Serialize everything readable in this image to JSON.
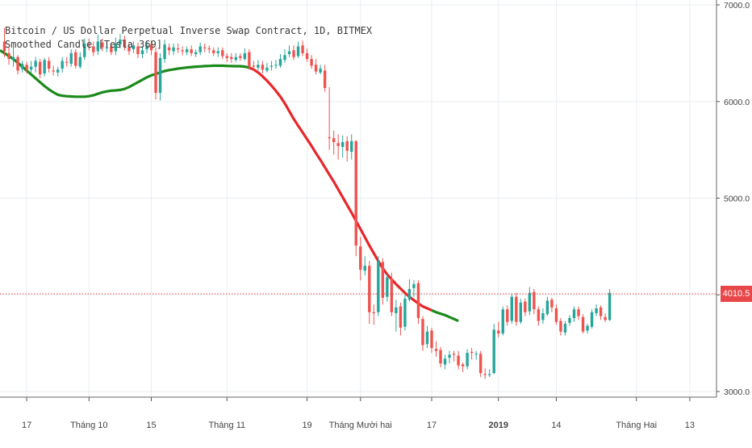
{
  "title": "Bitcoin / US Dollar Perpetual Inverse Swap Contract, 1D, BITMEX",
  "study_label": "Smoothed Candle [Tesla 369]",
  "last_price_label": "4010.5",
  "colors": {
    "up": "#26a69a",
    "down": "#ef5350",
    "ma_bull": "#1b8a1b",
    "ma_bear": "#e8262a",
    "price_line": "#e8474a",
    "grid": "#e9eef2",
    "axis_text": "#444444"
  },
  "chart_data": {
    "type": "candlestick",
    "title": "Bitcoin / US Dollar Perpetual Inverse Swap Contract, 1D, BITMEX",
    "y_axis": {
      "ticks": [
        "3000.0",
        "4000.0",
        "5000.0",
        "6000.0",
        "7000.0"
      ],
      "tick_values": [
        3000,
        4000,
        5000,
        6000,
        7000
      ],
      "range": [
        2980,
        7040
      ]
    },
    "x_axis": {
      "start": "2018-09-11",
      "end": "2019-02-19",
      "ticks": [
        {
          "label": "17",
          "date": "2018-09-17",
          "bold": false
        },
        {
          "label": "Tháng 10",
          "date": "2018-10-01",
          "bold": false
        },
        {
          "label": "15",
          "date": "2018-10-15",
          "bold": false
        },
        {
          "label": "Tháng 11",
          "date": "2018-11-01",
          "bold": false
        },
        {
          "label": "19",
          "date": "2018-11-19",
          "bold": false
        },
        {
          "label": "Tháng Mười hai",
          "date": "2018-12-01",
          "bold": false
        },
        {
          "label": "17",
          "date": "2018-12-17",
          "bold": false
        },
        {
          "label": "2019",
          "date": "2019-01-01",
          "bold": true
        },
        {
          "label": "14",
          "date": "2019-01-14",
          "bold": false
        },
        {
          "label": "Tháng Hai",
          "date": "2019-02-01",
          "bold": false
        },
        {
          "label": "13",
          "date": "2019-02-13",
          "bold": false
        }
      ]
    },
    "price_line": 4010.5,
    "candle_series": {
      "name": "",
      "first_date": "2018-09-12",
      "close": [
        6520,
        6440,
        6460,
        6320,
        6390,
        6330,
        6360,
        6420,
        6280,
        6430,
        6340,
        6310,
        6330,
        6420,
        6400,
        6500,
        6370,
        6460,
        6600,
        6580,
        6510,
        6620,
        6560,
        6560,
        6510,
        6600,
        6640,
        6560,
        6520,
        6580,
        6490,
        6530,
        6580,
        6530,
        6090,
        6450,
        6590,
        6530,
        6560,
        6540,
        6520,
        6540,
        6500,
        6510,
        6570,
        6550,
        6540,
        6500,
        6520,
        6470,
        6450,
        6440,
        6460,
        6450,
        6500,
        6360,
        6360,
        6380,
        6330,
        6350,
        6370,
        6380,
        6440,
        6480,
        6520,
        6460,
        6570,
        6500,
        6440,
        6370,
        6310,
        6340,
        6140,
        5620,
        5580,
        5540,
        5580,
        5490,
        5590,
        4510,
        4260,
        4300,
        3820,
        3810,
        4350,
        3970,
        4180,
        3820,
        3870,
        3660,
        3960,
        4060,
        4110,
        3760,
        3480,
        3620,
        3450,
        3420,
        3290,
        3340,
        3380,
        3380,
        3270,
        3260,
        3400,
        3400,
        3390,
        3190,
        3170,
        3180,
        3640,
        3600,
        3850,
        3720,
        3980,
        3720,
        3920,
        3820,
        4020,
        3850,
        3730,
        3810,
        3940,
        3870,
        3720,
        3620,
        3700,
        3760,
        3850,
        3780,
        3620,
        3680,
        3820,
        3860,
        3780,
        3740,
        4020
      ],
      "open": [
        6620,
        6500,
        6430,
        6460,
        6340,
        6380,
        6330,
        6360,
        6410,
        6290,
        6420,
        6320,
        6300,
        6340,
        6410,
        6390,
        6510,
        6360,
        6460,
        6590,
        6570,
        6520,
        6610,
        6550,
        6570,
        6520,
        6590,
        6640,
        6560,
        6540,
        6570,
        6490,
        6540,
        6590,
        6510,
        6090,
        6440,
        6560,
        6520,
        6550,
        6530,
        6510,
        6540,
        6490,
        6510,
        6560,
        6550,
        6530,
        6500,
        6530,
        6470,
        6460,
        6430,
        6470,
        6440,
        6510,
        6370,
        6350,
        6380,
        6320,
        6360,
        6380,
        6370,
        6430,
        6490,
        6530,
        6470,
        6580,
        6500,
        6440,
        6380,
        6300,
        6320,
        5630,
        5620,
        5570,
        5530,
        5590,
        5480,
        5590,
        4500,
        4250,
        4300,
        3820,
        3820,
        4340,
        3980,
        4170,
        3810,
        3880,
        3670,
        3950,
        4070,
        4120,
        3750,
        3490,
        3630,
        3440,
        3430,
        3280,
        3350,
        3390,
        3370,
        3280,
        3260,
        3410,
        3390,
        3390,
        3180,
        3170,
        3190,
        3630,
        3600,
        3850,
        3730,
        3980,
        3720,
        3930,
        3830,
        4030,
        3850,
        3740,
        3800,
        3950,
        3860,
        3730,
        3610,
        3710,
        3760,
        3850,
        3770,
        3630,
        3670,
        3810,
        3870,
        3770,
        3740
      ],
      "high": [
        6760,
        6560,
        6560,
        6480,
        6420,
        6410,
        6420,
        6460,
        6440,
        6450,
        6460,
        6370,
        6360,
        6460,
        6460,
        6540,
        6540,
        6510,
        6650,
        6650,
        6620,
        6690,
        6650,
        6610,
        6600,
        6660,
        6700,
        6680,
        6600,
        6620,
        6610,
        6570,
        6620,
        6630,
        6560,
        6500,
        6640,
        6600,
        6600,
        6600,
        6570,
        6570,
        6580,
        6540,
        6610,
        6600,
        6580,
        6560,
        6560,
        6560,
        6500,
        6500,
        6500,
        6500,
        6550,
        6540,
        6420,
        6430,
        6420,
        6400,
        6420,
        6430,
        6490,
        6540,
        6580,
        6580,
        6620,
        6630,
        6550,
        6480,
        6440,
        6380,
        6380,
        6150,
        5700,
        5660,
        5650,
        5640,
        5660,
        5600,
        4600,
        4400,
        4350,
        3900,
        4400,
        4380,
        4220,
        4230,
        3950,
        3920,
        4000,
        4160,
        4150,
        4150,
        3780,
        3680,
        3660,
        3520,
        3460,
        3380,
        3420,
        3420,
        3420,
        3300,
        3440,
        3450,
        3420,
        3420,
        3240,
        3230,
        3700,
        3720,
        3880,
        3890,
        4010,
        4020,
        3960,
        3960,
        4080,
        4060,
        3880,
        3860,
        3980,
        3970,
        3900,
        3760,
        3730,
        3790,
        3880,
        3880,
        3800,
        3700,
        3850,
        3900,
        3890,
        3810,
        4060
      ],
      "low": [
        6460,
        6380,
        6360,
        6280,
        6300,
        6290,
        6300,
        6300,
        6240,
        6260,
        6300,
        6270,
        6260,
        6300,
        6360,
        6360,
        6340,
        6340,
        6430,
        6530,
        6470,
        6480,
        6520,
        6510,
        6480,
        6480,
        6550,
        6530,
        6480,
        6500,
        6450,
        6450,
        6500,
        6480,
        6020,
        6010,
        6400,
        6480,
        6480,
        6500,
        6480,
        6480,
        6470,
        6460,
        6480,
        6510,
        6500,
        6470,
        6460,
        6440,
        6410,
        6400,
        6410,
        6420,
        6420,
        6330,
        6320,
        6320,
        6290,
        6300,
        6320,
        6340,
        6350,
        6400,
        6460,
        6430,
        6450,
        6470,
        6410,
        6340,
        6280,
        6280,
        6100,
        5500,
        5450,
        5400,
        5420,
        5380,
        5400,
        4400,
        4150,
        4200,
        3700,
        3690,
        3780,
        3900,
        3930,
        3780,
        3620,
        3580,
        3630,
        3930,
        3980,
        3700,
        3420,
        3450,
        3400,
        3360,
        3250,
        3230,
        3290,
        3310,
        3230,
        3200,
        3230,
        3330,
        3330,
        3150,
        3130,
        3150,
        3180,
        3560,
        3580,
        3680,
        3700,
        3680,
        3700,
        3780,
        3790,
        3800,
        3680,
        3700,
        3780,
        3820,
        3690,
        3580,
        3580,
        3680,
        3720,
        3740,
        3600,
        3600,
        3650,
        3780,
        3740,
        3720,
        3730
      ]
    },
    "smoothed_line": {
      "name": "",
      "first_date": "2018-09-11",
      "values": [
        6530,
        6500,
        6470,
        6440,
        6400,
        6360,
        6320,
        6280,
        6240,
        6200,
        6160,
        6125,
        6095,
        6070,
        6060,
        6055,
        6052,
        6050,
        6050,
        6050,
        6055,
        6065,
        6080,
        6095,
        6105,
        6112,
        6115,
        6120,
        6130,
        6150,
        6175,
        6200,
        6225,
        6250,
        6270,
        6285,
        6300,
        6315,
        6325,
        6333,
        6340,
        6346,
        6352,
        6356,
        6360,
        6363,
        6366,
        6368,
        6370,
        6370,
        6370,
        6368,
        6366,
        6365,
        6365,
        6360,
        6350,
        6330,
        6300,
        6260,
        6215,
        6165,
        6110,
        6050,
        5980,
        5900,
        5820,
        5750,
        5680,
        5610,
        5540,
        5465,
        5395,
        5320,
        5245,
        5170,
        5090,
        5010,
        4930,
        4850,
        4765,
        4680,
        4595,
        4510,
        4430,
        4350,
        4275,
        4210,
        4160,
        4110,
        4065,
        4020,
        3980,
        3945,
        3910,
        3880,
        3860,
        3840,
        3820,
        3805,
        3790,
        3770,
        3750,
        3730
      ],
      "bull_until_index": 56,
      "bull_from_index": 97
    }
  }
}
